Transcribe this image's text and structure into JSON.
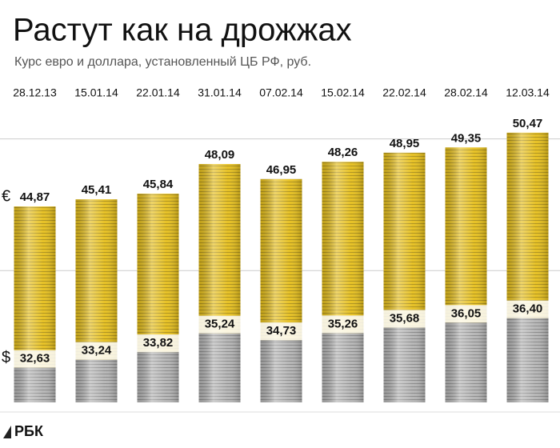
{
  "chart_data": {
    "type": "bar",
    "title": "Растут как на дрожжах",
    "subtitle": "Курс евро и доллара, установленный ЦБ РФ, руб.",
    "source": "РБК",
    "categories": [
      "28.12.13",
      "15.01.14",
      "22.01.14",
      "31.01.14",
      "07.02.14",
      "15.02.14",
      "22.02.14",
      "28.02.14",
      "12.03.14"
    ],
    "series": [
      {
        "name": "€",
        "color": "#e6bf1c",
        "values": [
          44.87,
          45.41,
          45.84,
          48.09,
          46.95,
          48.26,
          48.95,
          49.35,
          50.47
        ],
        "value_labels": [
          "44,87",
          "45,41",
          "45,84",
          "48,09",
          "46,95",
          "48,26",
          "48,95",
          "49,35",
          "50,47"
        ]
      },
      {
        "name": "$",
        "color": "#b4b4b4",
        "values": [
          32.63,
          33.24,
          33.82,
          35.24,
          34.73,
          35.26,
          35.68,
          36.05,
          36.4
        ],
        "value_labels": [
          "32,63",
          "33,24",
          "33,82",
          "35,24",
          "34,73",
          "35,26",
          "35,68",
          "36,05",
          "36,40"
        ]
      }
    ],
    "ylim": [
      30,
      51
    ],
    "yticks": [
      40,
      50
    ],
    "grid": true
  }
}
